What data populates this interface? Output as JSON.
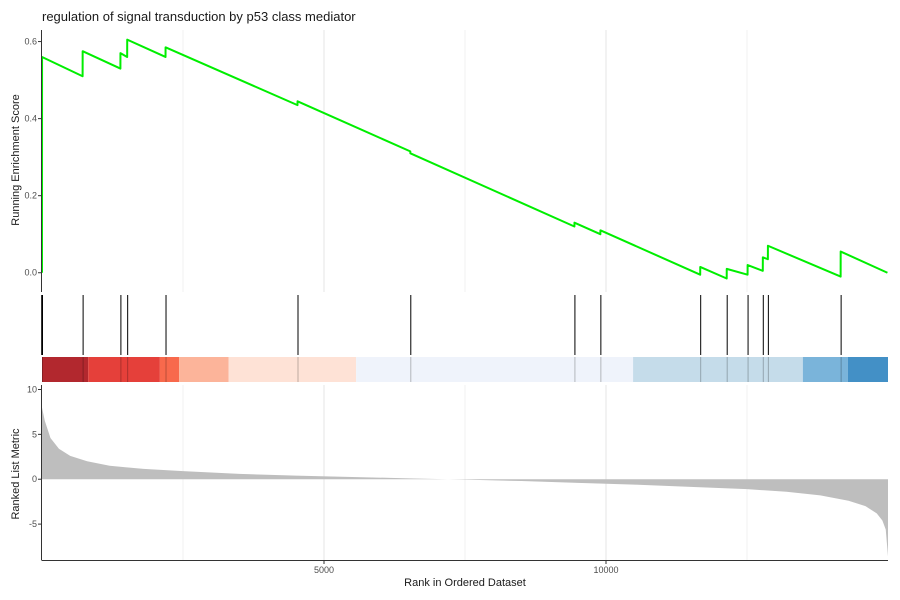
{
  "chart_data": {
    "type": "line",
    "title": "regulation of signal transduction by p53 class mediator",
    "xlabel": "Rank in Ordered Dataset",
    "xlim": [
      0,
      15000
    ],
    "x_ticks": [
      5000,
      10000
    ],
    "grid": "vertical",
    "running_score": {
      "ylabel": "Running Enrichment Score",
      "ylim": [
        -0.05,
        0.63
      ],
      "y_ticks": [
        0.0,
        0.2,
        0.4,
        0.6
      ],
      "color": "#00ee00",
      "x": [
        0,
        1,
        720,
        721,
        1390,
        1391,
        1510,
        1511,
        2190,
        2191,
        4530,
        4531,
        6530,
        6531,
        9440,
        9441,
        9900,
        9901,
        11670,
        11671,
        12140,
        12141,
        12510,
        12511,
        12780,
        12781,
        12870,
        12871,
        14160,
        14161,
        14990
      ],
      "y": [
        0.0,
        0.56,
        0.51,
        0.575,
        0.53,
        0.57,
        0.56,
        0.605,
        0.56,
        0.585,
        0.435,
        0.445,
        0.315,
        0.31,
        0.12,
        0.13,
        0.1,
        0.11,
        -0.005,
        0.015,
        -0.015,
        0.01,
        -0.005,
        0.02,
        0.005,
        0.04,
        0.035,
        0.07,
        -0.01,
        0.055,
        0.0
      ]
    },
    "hits": [
      0,
      720,
      1390,
      1510,
      2190,
      4530,
      6530,
      9440,
      9900,
      11670,
      12140,
      12510,
      12780,
      12870,
      14160
    ],
    "color_bands": [
      {
        "from": 0,
        "to": 820,
        "color": "#b2282e"
      },
      {
        "from": 820,
        "to": 2090,
        "color": "#e5403a"
      },
      {
        "from": 2090,
        "to": 2430,
        "color": "#f8694c"
      },
      {
        "from": 2430,
        "to": 3310,
        "color": "#fcb49a"
      },
      {
        "from": 3310,
        "to": 5570,
        "color": "#fee2d6"
      },
      {
        "from": 5570,
        "to": 10480,
        "color": "#eff3fb"
      },
      {
        "from": 10480,
        "to": 13490,
        "color": "#c5dcea"
      },
      {
        "from": 13490,
        "to": 14290,
        "color": "#7ab4da"
      },
      {
        "from": 14290,
        "to": 15000,
        "color": "#4390c6"
      }
    ],
    "ranked_metric": {
      "ylabel": "Ranked List Metric",
      "ylim": [
        -9,
        10.5
      ],
      "y_ticks": [
        -5,
        0,
        5,
        10
      ],
      "fill": "#bebebe",
      "x": [
        0,
        50,
        150,
        300,
        500,
        800,
        1200,
        1800,
        2500,
        3500,
        4500,
        5500,
        6500,
        7500,
        8500,
        9500,
        10500,
        11500,
        12500,
        13200,
        13800,
        14300,
        14600,
        14800,
        14900,
        14960,
        15000
      ],
      "y": [
        8.0,
        6.5,
        4.6,
        3.4,
        2.6,
        2.0,
        1.5,
        1.15,
        0.9,
        0.6,
        0.4,
        0.25,
        0.1,
        -0.05,
        -0.2,
        -0.4,
        -0.6,
        -0.85,
        -1.1,
        -1.4,
        -1.8,
        -2.4,
        -3.0,
        -3.8,
        -4.6,
        -5.6,
        -8.6
      ]
    }
  }
}
